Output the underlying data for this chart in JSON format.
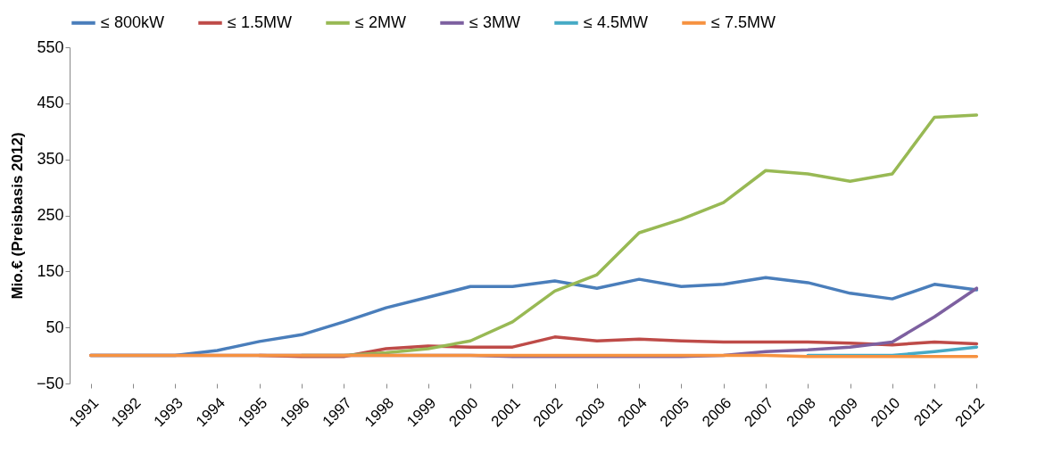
{
  "chart_data": {
    "type": "line",
    "ylabel": "Mio.€ (Preisbasis 2012)",
    "categories": [
      "1991",
      "1992",
      "1993",
      "1994",
      "1995",
      "1996",
      "1997",
      "1998",
      "1999",
      "2000",
      "2001",
      "2002",
      "2003",
      "2004",
      "2005",
      "2006",
      "2007",
      "2008",
      "2009",
      "2010",
      "2011",
      "2012"
    ],
    "ylim": [
      -50,
      550
    ],
    "yticks": [
      -50,
      50,
      150,
      250,
      350,
      450,
      550
    ],
    "grid": false,
    "legend": "top",
    "marker": "none",
    "line_style": "solid",
    "series": [
      {
        "name": "≤ 800kW",
        "color": "#4a7ebb",
        "values": [
          0,
          0,
          0,
          9,
          25,
          37,
          60,
          85,
          104,
          123,
          123,
          133,
          120,
          136,
          123,
          127,
          139,
          130,
          111,
          101,
          127,
          117
        ]
      },
      {
        "name": "≤ 1.5MW",
        "color": "#be4b48",
        "values": [
          null,
          null,
          null,
          null,
          0,
          -2,
          -2,
          12,
          17,
          15,
          15,
          33,
          26,
          29,
          26,
          24,
          24,
          24,
          22,
          19,
          24,
          21
        ]
      },
      {
        "name": "≤ 2MW",
        "color": "#98b954",
        "values": [
          null,
          null,
          null,
          null,
          null,
          0,
          0,
          5,
          12,
          26,
          60,
          115,
          144,
          219,
          243,
          273,
          330,
          324,
          311,
          324,
          425,
          429
        ]
      },
      {
        "name": "≤ 3MW",
        "color": "#7d60a0",
        "values": [
          0,
          0,
          0,
          0,
          0,
          0,
          0,
          0,
          0,
          0,
          -2,
          -2,
          -2,
          -2,
          -2,
          0,
          7,
          10,
          15,
          24,
          69,
          120
        ]
      },
      {
        "name": "≤ 4.5MW",
        "color": "#46aac5",
        "values": [
          null,
          null,
          null,
          null,
          null,
          null,
          null,
          null,
          null,
          null,
          null,
          null,
          null,
          null,
          null,
          null,
          null,
          0,
          0,
          0,
          7,
          15
        ]
      },
      {
        "name": "≤ 7.5MW",
        "color": "#f69240",
        "values": [
          0,
          0,
          0,
          0,
          0,
          0,
          0,
          0,
          0,
          0,
          0,
          0,
          0,
          0,
          0,
          0,
          0,
          -2,
          -2,
          -2,
          -2,
          -2
        ]
      }
    ]
  }
}
